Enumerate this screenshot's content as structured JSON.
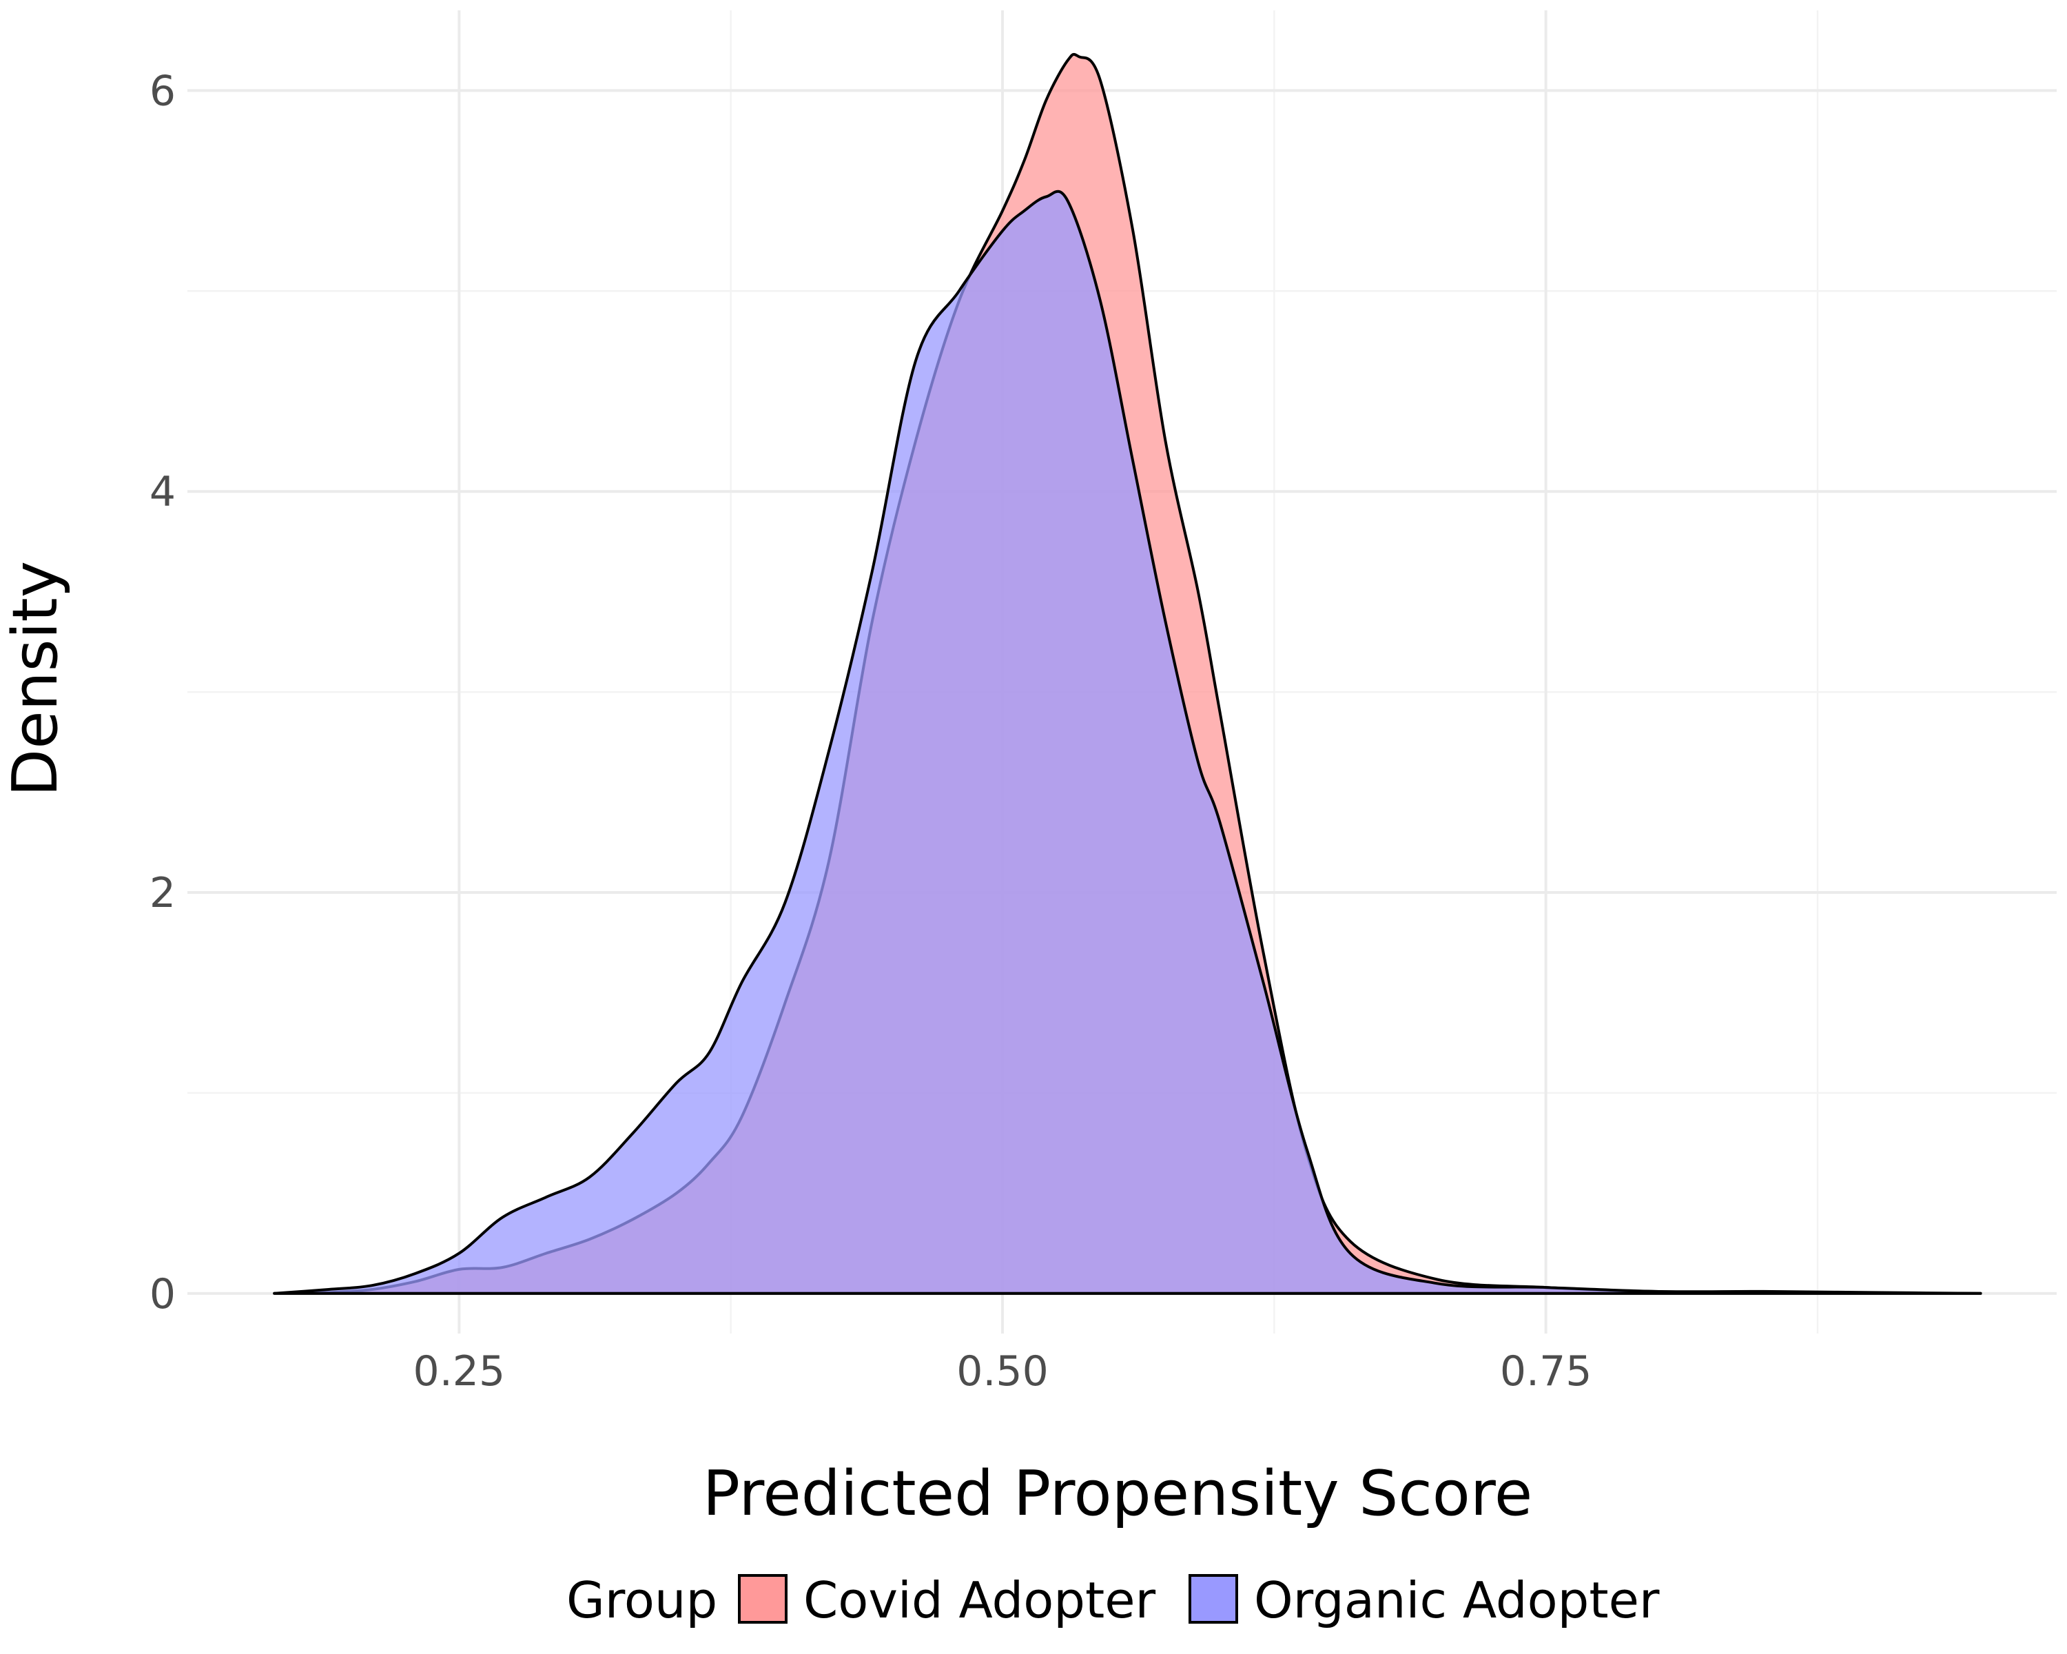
{
  "chart_data": {
    "type": "area",
    "title": "",
    "xlabel": "Predicted Propensity Score",
    "ylabel": "Density",
    "xlim": [
      0.125,
      0.985
    ],
    "ylim": [
      -0.2,
      6.4
    ],
    "x_ticks": [
      0.25,
      0.5,
      0.75
    ],
    "x_tick_labels": [
      "0.25",
      "0.50",
      "0.75"
    ],
    "x_minor_ticks": [
      0.375,
      0.625,
      0.875
    ],
    "y_ticks": [
      0,
      2,
      4,
      6
    ],
    "y_tick_labels": [
      "0",
      "2",
      "4",
      "6"
    ],
    "y_minor_ticks": [
      1,
      3,
      5
    ],
    "grid": true,
    "legend": {
      "position": "bottom",
      "title": "Group",
      "entries": [
        "Covid Adopter",
        "Organic Adopter"
      ]
    },
    "series": [
      {
        "name": "Covid Adopter",
        "color": "#FF9999",
        "x": [
          0.165,
          0.19,
          0.21,
          0.23,
          0.25,
          0.27,
          0.29,
          0.31,
          0.33,
          0.35,
          0.365,
          0.38,
          0.4,
          0.42,
          0.44,
          0.46,
          0.48,
          0.5,
          0.51,
          0.52,
          0.53,
          0.535,
          0.545,
          0.56,
          0.575,
          0.59,
          0.6,
          0.62,
          0.64,
          0.66,
          0.7,
          0.75,
          0.8,
          0.85,
          0.9,
          0.95
        ],
        "values": [
          0.0,
          0.005,
          0.02,
          0.06,
          0.12,
          0.13,
          0.2,
          0.27,
          0.37,
          0.5,
          0.65,
          0.88,
          1.45,
          2.15,
          3.35,
          4.25,
          4.95,
          5.4,
          5.65,
          5.95,
          6.15,
          6.17,
          6.05,
          5.3,
          4.25,
          3.5,
          2.9,
          1.7,
          0.7,
          0.26,
          0.07,
          0.03,
          0.01,
          0.01,
          0.005,
          0.0
        ]
      },
      {
        "name": "Organic Adopter",
        "color": "#9999FF",
        "x": [
          0.165,
          0.19,
          0.21,
          0.23,
          0.25,
          0.27,
          0.29,
          0.31,
          0.33,
          0.35,
          0.365,
          0.38,
          0.4,
          0.42,
          0.44,
          0.46,
          0.48,
          0.5,
          0.51,
          0.52,
          0.53,
          0.545,
          0.56,
          0.575,
          0.59,
          0.6,
          0.62,
          0.64,
          0.66,
          0.7,
          0.75,
          0.8,
          0.85,
          0.9,
          0.95
        ],
        "values": [
          0.0,
          0.02,
          0.04,
          0.1,
          0.2,
          0.38,
          0.48,
          0.58,
          0.8,
          1.05,
          1.2,
          1.55,
          1.95,
          2.7,
          3.6,
          4.65,
          5.0,
          5.3,
          5.4,
          5.47,
          5.45,
          4.95,
          4.15,
          3.35,
          2.65,
          2.35,
          1.55,
          0.72,
          0.2,
          0.05,
          0.03,
          0.01,
          0.005,
          0.002,
          0.0
        ]
      }
    ]
  }
}
